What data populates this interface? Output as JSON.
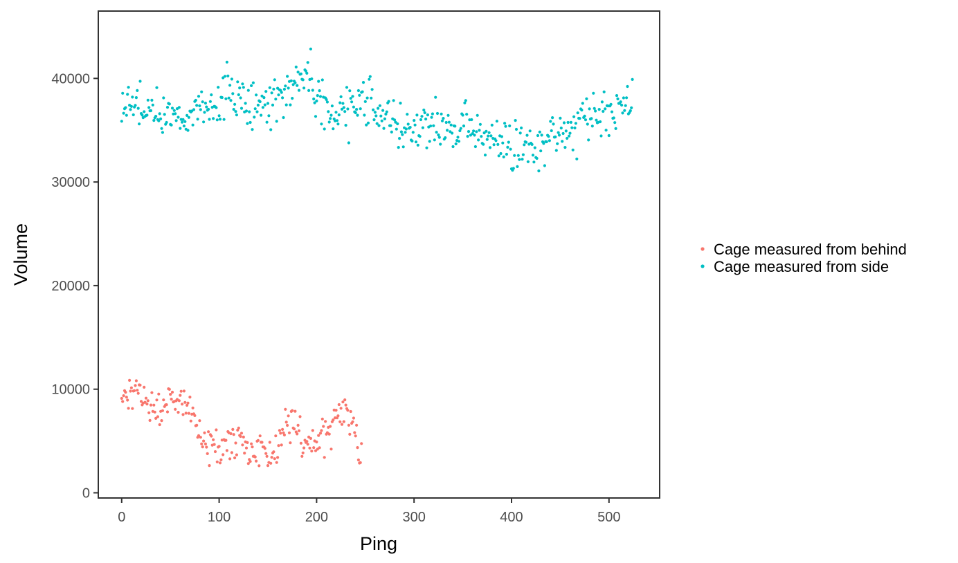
{
  "chart_data": {
    "type": "scatter",
    "title": "",
    "xlabel": "Ping",
    "ylabel": "Volume",
    "xlim": [
      -24,
      552
    ],
    "ylim": [
      -500,
      46500
    ],
    "x_ticks": [
      0,
      100,
      200,
      300,
      400,
      500
    ],
    "y_ticks": [
      0,
      10000,
      20000,
      30000,
      40000
    ],
    "grid": false,
    "legend_position": "right",
    "series": [
      {
        "name": "Cage measured from behind",
        "color": "#f8766d",
        "anchors": [
          [
            0,
            8700
          ],
          [
            5,
            9500
          ],
          [
            10,
            8900
          ],
          [
            15,
            10000
          ],
          [
            20,
            9700
          ],
          [
            25,
            9300
          ],
          [
            30,
            8600
          ],
          [
            35,
            8400
          ],
          [
            40,
            7700
          ],
          [
            45,
            8700
          ],
          [
            50,
            9000
          ],
          [
            55,
            8600
          ],
          [
            60,
            8800
          ],
          [
            65,
            8500
          ],
          [
            70,
            7800
          ],
          [
            75,
            6000
          ],
          [
            80,
            5400
          ],
          [
            85,
            4800
          ],
          [
            90,
            4700
          ],
          [
            95,
            4900
          ],
          [
            100,
            4600
          ],
          [
            105,
            4800
          ],
          [
            110,
            5000
          ],
          [
            115,
            4900
          ],
          [
            120,
            5600
          ],
          [
            125,
            5200
          ],
          [
            130,
            3700
          ],
          [
            135,
            3600
          ],
          [
            140,
            4600
          ],
          [
            145,
            4300
          ],
          [
            150,
            3700
          ],
          [
            155,
            3700
          ],
          [
            160,
            3800
          ],
          [
            165,
            6000
          ],
          [
            170,
            6400
          ],
          [
            175,
            6600
          ],
          [
            180,
            6100
          ],
          [
            185,
            4800
          ],
          [
            190,
            4600
          ],
          [
            195,
            4400
          ],
          [
            200,
            4600
          ],
          [
            205,
            5000
          ],
          [
            210,
            5900
          ],
          [
            215,
            6400
          ],
          [
            220,
            7700
          ],
          [
            225,
            8200
          ],
          [
            230,
            8300
          ],
          [
            235,
            7000
          ],
          [
            240,
            5600
          ],
          [
            245,
            4000
          ]
        ],
        "x_range": [
          0,
          246
        ],
        "spread": 850
      },
      {
        "name": "Cage measured from side",
        "color": "#00bfc4",
        "anchors": [
          [
            0,
            37600
          ],
          [
            10,
            37800
          ],
          [
            20,
            37000
          ],
          [
            30,
            36600
          ],
          [
            40,
            35800
          ],
          [
            50,
            35700
          ],
          [
            60,
            36300
          ],
          [
            70,
            37000
          ],
          [
            80,
            37500
          ],
          [
            90,
            38000
          ],
          [
            100,
            37900
          ],
          [
            110,
            38500
          ],
          [
            120,
            38300
          ],
          [
            130,
            37300
          ],
          [
            140,
            37500
          ],
          [
            150,
            37700
          ],
          [
            160,
            37800
          ],
          [
            170,
            38800
          ],
          [
            180,
            39500
          ],
          [
            190,
            40100
          ],
          [
            200,
            39000
          ],
          [
            210,
            37500
          ],
          [
            220,
            36800
          ],
          [
            230,
            36400
          ],
          [
            240,
            37300
          ],
          [
            250,
            37800
          ],
          [
            260,
            37100
          ],
          [
            270,
            36200
          ],
          [
            280,
            35700
          ],
          [
            290,
            35400
          ],
          [
            300,
            35100
          ],
          [
            310,
            34800
          ],
          [
            320,
            35100
          ],
          [
            330,
            35000
          ],
          [
            340,
            35400
          ],
          [
            350,
            35300
          ],
          [
            360,
            34800
          ],
          [
            370,
            34500
          ],
          [
            380,
            34300
          ],
          [
            390,
            34200
          ],
          [
            400,
            33700
          ],
          [
            410,
            33300
          ],
          [
            420,
            33400
          ],
          [
            430,
            33600
          ],
          [
            440,
            34200
          ],
          [
            450,
            34500
          ],
          [
            460,
            35000
          ],
          [
            470,
            35500
          ],
          [
            480,
            36100
          ],
          [
            490,
            36600
          ],
          [
            500,
            36600
          ],
          [
            510,
            37000
          ],
          [
            520,
            37500
          ]
        ],
        "x_range": [
          0,
          524
        ],
        "spread": 1150
      }
    ]
  }
}
